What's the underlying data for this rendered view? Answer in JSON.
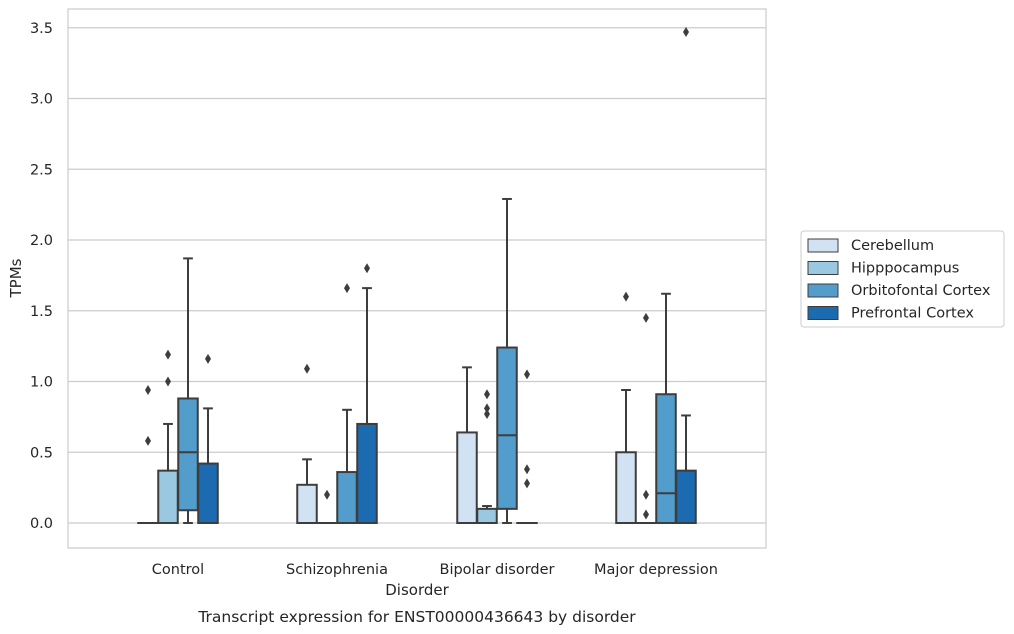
{
  "caption": "Transcript expression for ENST00000436643 by disorder",
  "chart_data": {
    "type": "boxplot",
    "title": "",
    "xlabel": "Disorder",
    "ylabel": "TPMs",
    "ylim": [
      -0.17,
      3.65
    ],
    "yticks": [
      0.0,
      0.5,
      1.0,
      1.5,
      2.0,
      2.5,
      3.0,
      3.5
    ],
    "ytick_labels": [
      "0.0",
      "0.5",
      "1.0",
      "1.5",
      "2.0",
      "2.5",
      "3.0",
      "3.5"
    ],
    "grid": "horizontal",
    "legend_position": "right",
    "categories": [
      "Control",
      "Schizophrenia",
      "Bipolar disorder",
      "Major depression"
    ],
    "series": [
      {
        "name": "Cerebellum",
        "color": "#d1e2f2",
        "boxes": [
          {
            "q1": 0,
            "median": 0,
            "q3": 0,
            "whisker_low": 0,
            "whisker_high": 0,
            "outliers": [
              0.58,
              0.94
            ]
          },
          {
            "q1": 0,
            "median": 0,
            "q3": 0.27,
            "whisker_low": 0,
            "whisker_high": 0.45,
            "outliers": [
              1.09
            ]
          },
          {
            "q1": 0,
            "median": 0,
            "q3": 0.64,
            "whisker_low": 0,
            "whisker_high": 1.1,
            "outliers": []
          },
          {
            "q1": 0,
            "median": 0,
            "q3": 0.5,
            "whisker_low": 0,
            "whisker_high": 0.94,
            "outliers": [
              1.6
            ]
          }
        ]
      },
      {
        "name": "Hipppocampus",
        "color": "#9ac8e0",
        "boxes": [
          {
            "q1": 0,
            "median": 0,
            "q3": 0.37,
            "whisker_low": 0,
            "whisker_high": 0.7,
            "outliers": [
              1.0,
              1.19
            ]
          },
          {
            "q1": 0,
            "median": 0,
            "q3": 0,
            "whisker_low": 0,
            "whisker_high": 0,
            "outliers": [
              0.2
            ]
          },
          {
            "q1": 0,
            "median": 0,
            "q3": 0.1,
            "whisker_low": 0,
            "whisker_high": 0.12,
            "outliers": [
              0.77,
              0.81,
              0.91
            ]
          },
          {
            "q1": 0,
            "median": 0,
            "q3": 0,
            "whisker_low": 0,
            "whisker_high": 0,
            "outliers": [
              0.06,
              0.2,
              1.45
            ]
          }
        ]
      },
      {
        "name": "Orbitofontal Cortex",
        "color": "#529dcc",
        "boxes": [
          {
            "q1": 0.09,
            "median": 0.5,
            "q3": 0.88,
            "whisker_low": 0,
            "whisker_high": 1.87,
            "outliers": []
          },
          {
            "q1": 0,
            "median": 0,
            "q3": 0.36,
            "whisker_low": 0,
            "whisker_high": 0.8,
            "outliers": [
              1.66
            ]
          },
          {
            "q1": 0.1,
            "median": 0.62,
            "q3": 1.24,
            "whisker_low": 0,
            "whisker_high": 2.29,
            "outliers": []
          },
          {
            "q1": 0,
            "median": 0.21,
            "q3": 0.91,
            "whisker_low": 0,
            "whisker_high": 1.62,
            "outliers": []
          }
        ]
      },
      {
        "name": "Prefrontal Cortex",
        "color": "#1c6aaf",
        "boxes": [
          {
            "q1": 0,
            "median": 0,
            "q3": 0.42,
            "whisker_low": 0,
            "whisker_high": 0.81,
            "outliers": [
              1.16
            ]
          },
          {
            "q1": 0,
            "median": 0,
            "q3": 0.7,
            "whisker_low": 0,
            "whisker_high": 1.66,
            "outliers": [
              1.8
            ]
          },
          {
            "q1": 0,
            "median": 0,
            "q3": 0,
            "whisker_low": 0,
            "whisker_high": 0,
            "outliers": [
              0.28,
              0.38,
              1.05
            ]
          },
          {
            "q1": 0,
            "median": 0,
            "q3": 0.37,
            "whisker_low": 0,
            "whisker_high": 0.76,
            "outliers": [
              3.47
            ]
          }
        ]
      }
    ]
  }
}
